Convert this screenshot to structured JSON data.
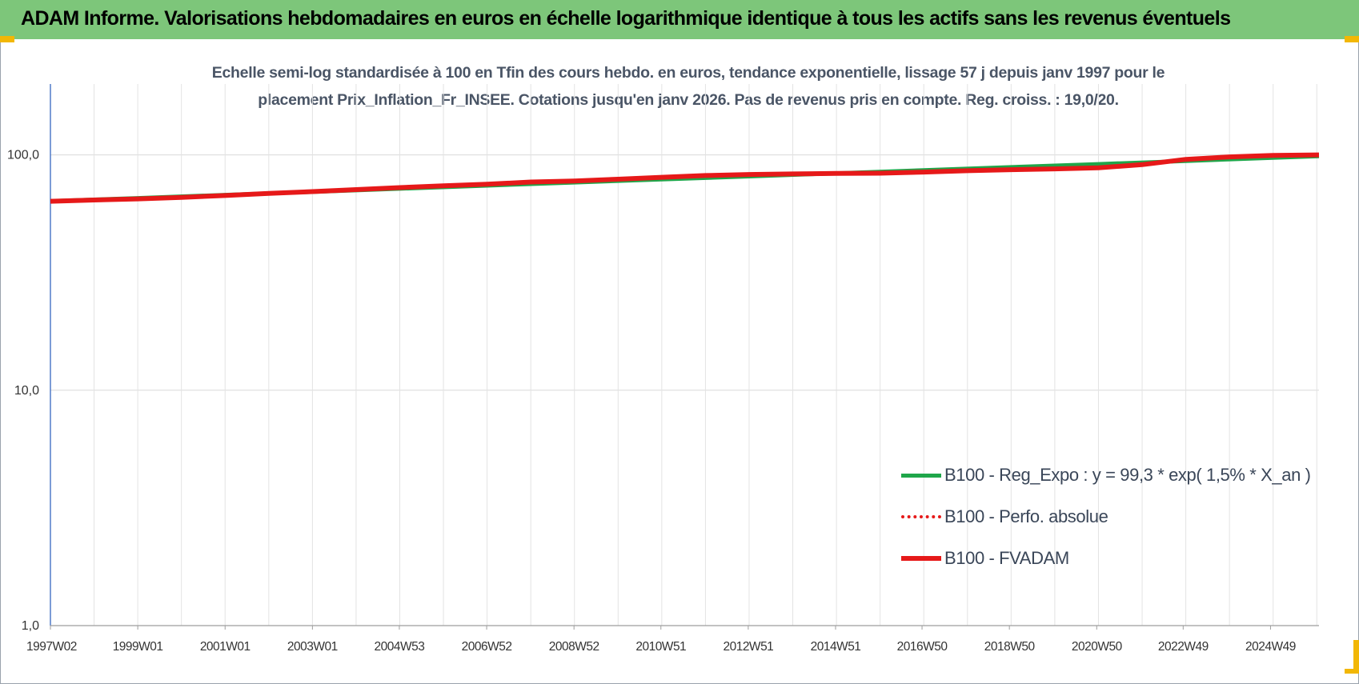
{
  "banner": {
    "title": "ADAM Informe. Valorisations hebdomadaires en euros en échelle logarithmique identique à tous les actifs sans les revenus éventuels"
  },
  "colors": {
    "banner_bg": "#7dc67a",
    "corner_marker": "#f2b705",
    "series_reg": "#1fa64a",
    "series_perf": "#e61919",
    "series_fvadam": "#e61919"
  },
  "chart_data": {
    "type": "line",
    "title": "Echelle semi-log standardisée à 100 en Tfin des cours hebdo. en euros, tendance exponentielle, lissage 57 j depuis janv 1997 pour le placement Prix_Inflation_Fr_INSEE. Cotations jusqu'en janv 2026. Pas de revenus pris en compte. Reg. croiss. : 19,0/20.",
    "title_lines": [
      "Echelle semi-log standardisée à 100 en Tfin des cours hebdo. en euros, tendance exponentielle, lissage 57 j depuis janv 1997 pour le",
      "placement Prix_Inflation_Fr_INSEE. Cotations jusqu'en janv 2026. Pas de revenus pris en compte. Reg. croiss. : 19,0/20."
    ],
    "xlabel": "",
    "ylabel": "",
    "y_scale": "log",
    "ylim": [
      1,
      200
    ],
    "xlim": [
      1997.0,
      2026.05
    ],
    "grid": true,
    "legend_position": "right",
    "y_ticks": [
      {
        "value": 1,
        "label": "1,0"
      },
      {
        "value": 10,
        "label": "10,0"
      },
      {
        "value": 100,
        "label": "100,0"
      }
    ],
    "x_ticks": [
      {
        "value": 1997.0,
        "label": "1997W02"
      },
      {
        "value": 1999.0,
        "label": "1999W01"
      },
      {
        "value": 2001.0,
        "label": "2001W01"
      },
      {
        "value": 2003.0,
        "label": "2003W01"
      },
      {
        "value": 2004.99,
        "label": "2004W53"
      },
      {
        "value": 2006.99,
        "label": "2006W52"
      },
      {
        "value": 2008.99,
        "label": "2008W52"
      },
      {
        "value": 2010.98,
        "label": "2010W51"
      },
      {
        "value": 2012.98,
        "label": "2012W51"
      },
      {
        "value": 2014.98,
        "label": "2014W51"
      },
      {
        "value": 2016.96,
        "label": "2016W50"
      },
      {
        "value": 2018.96,
        "label": "2018W50"
      },
      {
        "value": 2020.96,
        "label": "2020W50"
      },
      {
        "value": 2022.94,
        "label": "2022W49"
      },
      {
        "value": 2024.94,
        "label": "2024W49"
      }
    ],
    "series": [
      {
        "name": "B100 - Reg_Expo : y = 99,3 * exp( 1,5% *  X_an )",
        "style": "solid",
        "color": "#1fa64a",
        "x": [
          1997.0,
          1999.0,
          2001.0,
          2003.0,
          2005.0,
          2007.0,
          2009.0,
          2011.0,
          2013.0,
          2015.0,
          2017.0,
          2019.0,
          2021.0,
          2023.0,
          2025.0,
          2026.05
        ],
        "values": [
          63.6,
          65.5,
          67.6,
          69.6,
          71.8,
          74.0,
          76.3,
          78.6,
          81.0,
          83.5,
          86.1,
          88.7,
          91.4,
          94.2,
          97.1,
          98.7
        ]
      },
      {
        "name": "B100 - Perfo. absolue",
        "style": "dotted",
        "color": "#e61919",
        "x": [
          1997.0,
          1998.0,
          1999.0,
          2000.0,
          2001.0,
          2002.0,
          2003.0,
          2004.0,
          2005.0,
          2006.0,
          2007.0,
          2008.0,
          2009.0,
          2010.0,
          2011.0,
          2012.0,
          2013.0,
          2014.0,
          2015.0,
          2016.0,
          2017.0,
          2018.0,
          2019.0,
          2020.0,
          2021.0,
          2022.0,
          2023.0,
          2024.0,
          2025.0,
          2026.05
        ],
        "values": [
          63.5,
          64.3,
          65.0,
          66.0,
          67.2,
          68.6,
          69.8,
          71.2,
          72.6,
          73.9,
          75.0,
          76.7,
          77.4,
          78.8,
          80.3,
          81.7,
          82.5,
          83.0,
          83.4,
          83.6,
          84.5,
          85.6,
          86.5,
          87.2,
          88.1,
          90.9,
          95.7,
          98.0,
          99.4,
          100.0
        ]
      },
      {
        "name": "B100 - FVADAM",
        "style": "solid-thick",
        "color": "#e61919",
        "x": [
          1997.0,
          1998.0,
          1999.0,
          2000.0,
          2001.0,
          2002.0,
          2003.0,
          2004.0,
          2005.0,
          2006.0,
          2007.0,
          2008.0,
          2009.0,
          2010.0,
          2011.0,
          2012.0,
          2013.0,
          2014.0,
          2015.0,
          2016.0,
          2017.0,
          2018.0,
          2019.0,
          2020.0,
          2021.0,
          2022.0,
          2023.0,
          2024.0,
          2025.0,
          2026.05
        ],
        "values": [
          63.5,
          64.3,
          65.0,
          66.0,
          67.2,
          68.6,
          69.8,
          71.2,
          72.6,
          73.9,
          75.0,
          76.7,
          77.4,
          78.8,
          80.3,
          81.7,
          82.5,
          83.0,
          83.4,
          83.6,
          84.5,
          85.6,
          86.5,
          87.2,
          88.1,
          90.9,
          95.7,
          98.0,
          99.4,
          100.0
        ]
      }
    ]
  }
}
